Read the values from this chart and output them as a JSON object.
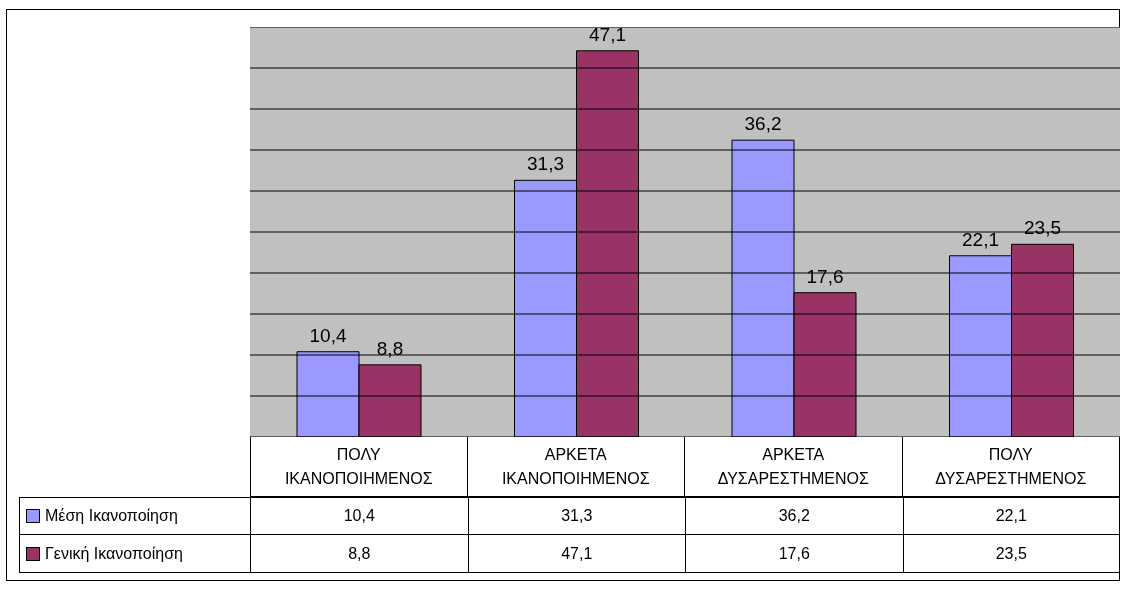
{
  "chart_data": {
    "type": "bar",
    "categories": [
      "ΠΟΛΥ ΙΚΑΝΟΠΟΙΗΜΕΝΟΣ",
      "ΑΡΚΕΤΑ ΙΚΑΝΟΠΟΙΗΜΕΝΟΣ",
      "ΑΡΚΕΤΑ ΔΥΣΑΡΕΣΤΗΜΕΝΟΣ",
      "ΠΟΛΥ ΔΥΣΑΡΕΣΤΗΜΕΝΟΣ"
    ],
    "series": [
      {
        "name": "Μέση Ικανοποίηση",
        "color": "#9999ff",
        "values": [
          10.4,
          31.3,
          36.2,
          22.1
        ],
        "value_labels": [
          "10,4",
          "31,3",
          "36,2",
          "22,1"
        ]
      },
      {
        "name": "Γενική Ικανοποίηση",
        "color": "#993366",
        "values": [
          8.8,
          47.1,
          17.6,
          23.5
        ],
        "value_labels": [
          "8,8",
          "47,1",
          "17,6",
          "23,5"
        ]
      }
    ],
    "ylim": [
      0,
      50
    ],
    "yticks": [
      {
        "value": 0,
        "label": null
      },
      {
        "value": 5,
        "label": null
      },
      {
        "value": 10,
        "label": null
      },
      {
        "value": 15,
        "label": null
      },
      {
        "value": 20,
        "label": null
      },
      {
        "value": 25,
        "label": null
      },
      {
        "value": 30,
        "label": null
      },
      {
        "value": 35,
        "label": null
      },
      {
        "value": 40,
        "label": null
      },
      {
        "value": 45,
        "label": null
      },
      {
        "value": 50,
        "label": null
      }
    ],
    "grid": "y",
    "tick_labels": "x",
    "legend": "bottom"
  }
}
